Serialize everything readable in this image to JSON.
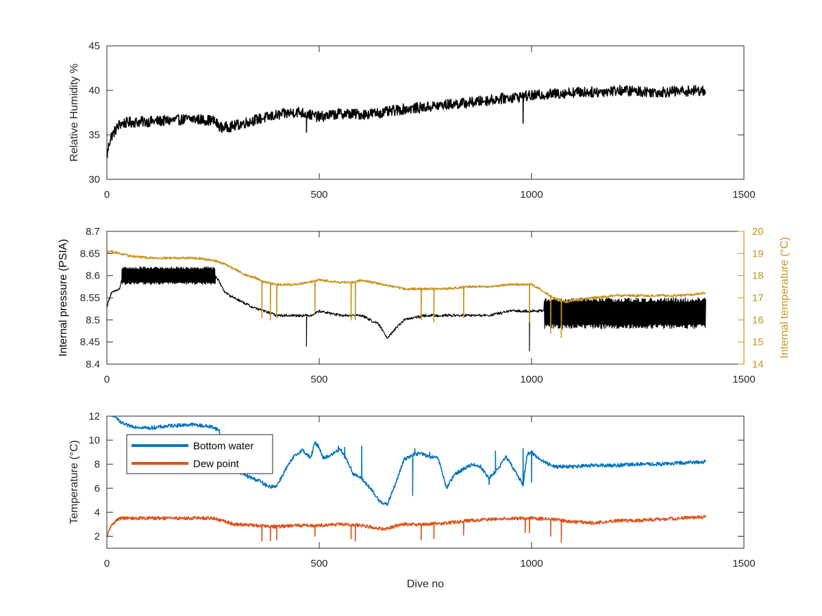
{
  "chart_data": [
    {
      "type": "line",
      "xlabel": "",
      "ylabel": "Relative Humidity %",
      "xlim": [
        0,
        1500
      ],
      "ylim": [
        30,
        45
      ],
      "xticks": [
        "0",
        "500",
        "1000",
        "1500"
      ],
      "yticks": [
        "30",
        "35",
        "40",
        "45"
      ],
      "series": [
        {
          "name": "",
          "color": "#000000",
          "x": [
            0,
            5,
            10,
            20,
            30,
            50,
            100,
            150,
            200,
            250,
            270,
            300,
            350,
            400,
            450,
            500,
            550,
            600,
            650,
            700,
            750,
            800,
            850,
            900,
            950,
            1000,
            1050,
            1100,
            1150,
            1200,
            1250,
            1300,
            1350,
            1410
          ],
          "y": [
            32.5,
            34.0,
            34.8,
            35.5,
            36.2,
            36.4,
            36.5,
            36.6,
            36.8,
            36.6,
            35.8,
            36.0,
            36.7,
            37.2,
            37.6,
            37.0,
            37.4,
            37.3,
            37.5,
            37.9,
            38.1,
            38.4,
            38.6,
            38.9,
            39.2,
            39.4,
            39.6,
            39.8,
            39.8,
            40.0,
            39.9,
            39.8,
            39.9,
            40.0
          ],
          "noise": 0.6,
          "dips": [
            [
              470,
              35.3
            ],
            [
              980,
              36.3
            ]
          ]
        }
      ]
    },
    {
      "type": "line",
      "xlabel": "",
      "ylabel": "Internal pressure (PSIA)",
      "ylabel_right": "Internal temperature (°C)",
      "xlim": [
        0,
        1500
      ],
      "ylim": [
        8.4,
        8.7
      ],
      "ylim_right": [
        14,
        20
      ],
      "xticks": [
        "0",
        "500",
        "1000",
        "1500"
      ],
      "yticks": [
        "8.4",
        "8.45",
        "8.5",
        "8.55",
        "8.6",
        "8.65",
        "8.7"
      ],
      "yticks_right": [
        "14",
        "15",
        "16",
        "17",
        "18",
        "19",
        "20"
      ],
      "series": [
        {
          "name": "",
          "axis": "left",
          "color": "#000000",
          "x": [
            0,
            10,
            30,
            40,
            100,
            150,
            200,
            250,
            280,
            320,
            340,
            370,
            400,
            450,
            480,
            500,
            550,
            600,
            640,
            660,
            700,
            750,
            800,
            850,
            900,
            950,
            1000,
            1030,
            1060,
            1080,
            1100,
            1150,
            1200,
            1250,
            1300,
            1350,
            1410
          ],
          "y": [
            8.53,
            8.56,
            8.57,
            8.61,
            8.61,
            8.61,
            8.61,
            8.61,
            8.56,
            8.54,
            8.53,
            8.52,
            8.51,
            8.51,
            8.51,
            8.52,
            8.51,
            8.51,
            8.49,
            8.46,
            8.5,
            8.51,
            8.51,
            8.51,
            8.51,
            8.52,
            8.52,
            8.52,
            8.52,
            8.51,
            8.5,
            8.51,
            8.52,
            8.52,
            8.52,
            8.53,
            8.54
          ],
          "noise": 0.003,
          "bands": [
            [
              35,
              255,
              8.58,
              8.62
            ],
            [
              1030,
              1415,
              8.48,
              8.55
            ]
          ],
          "dips": [
            [
              470,
              8.44
            ],
            [
              995,
              8.43
            ]
          ]
        },
        {
          "name": "",
          "axis": "right",
          "color": "#c8941c",
          "x": [
            0,
            10,
            50,
            100,
            150,
            200,
            250,
            280,
            300,
            330,
            350,
            370,
            400,
            450,
            500,
            550,
            580,
            600,
            650,
            700,
            750,
            800,
            850,
            900,
            950,
            1000,
            1020,
            1050,
            1080,
            1100,
            1150,
            1200,
            1250,
            1300,
            1350,
            1410
          ],
          "y": [
            19.1,
            19.1,
            18.9,
            18.8,
            18.8,
            18.8,
            18.7,
            18.5,
            18.3,
            18.0,
            17.9,
            17.7,
            17.6,
            17.6,
            17.8,
            17.7,
            17.7,
            17.8,
            17.6,
            17.4,
            17.4,
            17.4,
            17.5,
            17.5,
            17.6,
            17.6,
            17.4,
            17.0,
            16.8,
            16.9,
            17.0,
            17.1,
            17.1,
            17.1,
            17.1,
            17.2
          ],
          "noise": 0.05,
          "dips": [
            [
              365,
              16.1
            ],
            [
              385,
              16.0
            ],
            [
              400,
              16.1
            ],
            [
              490,
              16.4
            ],
            [
              575,
              16.0
            ],
            [
              585,
              16.0
            ],
            [
              740,
              16.0
            ],
            [
              770,
              15.9
            ],
            [
              840,
              16.1
            ],
            [
              995,
              15.9
            ],
            [
              1045,
              15.4
            ],
            [
              1070,
              15.2
            ]
          ]
        }
      ]
    },
    {
      "type": "line",
      "xlabel": "Dive no",
      "ylabel": "Temperature (°C)",
      "xlim": [
        0,
        1500
      ],
      "ylim": [
        1,
        12
      ],
      "xticks": [
        "0",
        "500",
        "1000",
        "1500"
      ],
      "yticks": [
        "2",
        "4",
        "6",
        "8",
        "10",
        "12"
      ],
      "legend_position": "top-left",
      "series": [
        {
          "name": "Bottom water",
          "color": "#0072bd",
          "x": [
            0,
            20,
            30,
            50,
            100,
            150,
            200,
            250,
            265,
            270,
            300,
            330,
            360,
            380,
            400,
            420,
            440,
            460,
            480,
            490,
            500,
            510,
            530,
            550,
            570,
            580,
            600,
            620,
            640,
            660,
            680,
            700,
            720,
            740,
            760,
            780,
            800,
            820,
            840,
            860,
            880,
            900,
            920,
            940,
            960,
            980,
            990,
            1000,
            1020,
            1040,
            1060,
            1080,
            1100,
            1150,
            1200,
            1250,
            1300,
            1350,
            1410
          ],
          "y": [
            12.3,
            12.0,
            11.5,
            11.2,
            11.0,
            11.2,
            11.3,
            11.1,
            10.8,
            8.0,
            7.6,
            7.0,
            6.6,
            6.1,
            6.2,
            7.5,
            8.6,
            9.2,
            8.5,
            9.8,
            9.4,
            8.5,
            8.8,
            9.3,
            8.0,
            7.2,
            6.8,
            6.0,
            5.0,
            4.6,
            6.4,
            8.4,
            8.8,
            8.9,
            8.6,
            8.5,
            6.0,
            7.2,
            7.6,
            8.0,
            7.8,
            6.8,
            7.6,
            8.6,
            7.5,
            6.3,
            8.8,
            9.0,
            8.4,
            8.0,
            7.8,
            7.8,
            7.8,
            7.9,
            7.9,
            8.0,
            8.0,
            8.1,
            8.2
          ],
          "noise": 0.15,
          "spikes": [
            [
              545,
              9.5
            ],
            [
              560,
              9.4
            ],
            [
              600,
              9.5
            ],
            [
              720,
              5.4
            ],
            [
              725,
              9.3
            ],
            [
              760,
              9.0
            ],
            [
              900,
              6.3
            ],
            [
              915,
              9.1
            ],
            [
              980,
              9.3
            ],
            [
              1000,
              6.5
            ]
          ]
        },
        {
          "name": "Dew point",
          "color": "#d95319",
          "x": [
            0,
            5,
            15,
            30,
            100,
            200,
            250,
            280,
            300,
            350,
            400,
            450,
            500,
            550,
            600,
            650,
            700,
            750,
            800,
            850,
            900,
            950,
            1000,
            1050,
            1100,
            1150,
            1200,
            1250,
            1300,
            1350,
            1410
          ],
          "y": [
            1.8,
            2.5,
            3.1,
            3.5,
            3.5,
            3.5,
            3.5,
            3.2,
            3.0,
            2.9,
            2.8,
            2.9,
            2.9,
            3.0,
            2.9,
            2.6,
            3.0,
            3.0,
            3.1,
            3.3,
            3.4,
            3.5,
            3.5,
            3.4,
            3.2,
            3.1,
            3.3,
            3.3,
            3.4,
            3.5,
            3.6
          ],
          "noise": 0.14,
          "dips": [
            [
              365,
              1.6
            ],
            [
              385,
              1.6
            ],
            [
              400,
              1.7
            ],
            [
              490,
              2.0
            ],
            [
              575,
              1.8
            ],
            [
              585,
              1.6
            ],
            [
              740,
              1.7
            ],
            [
              770,
              1.8
            ],
            [
              840,
              2.1
            ],
            [
              985,
              2.3
            ],
            [
              995,
              2.3
            ],
            [
              1045,
              2.0
            ],
            [
              1070,
              1.5
            ]
          ]
        }
      ]
    }
  ]
}
